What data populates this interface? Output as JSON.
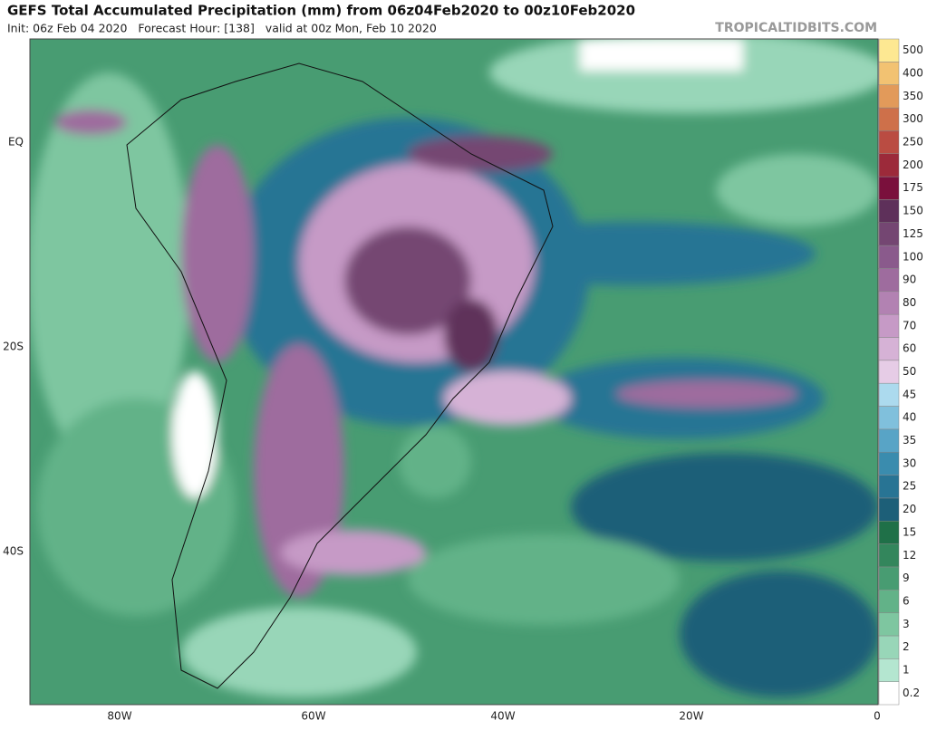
{
  "header": {
    "title": "GEFS Total Accumulated Precipitation (mm) from 06z04Feb2020 to 00z10Feb2020",
    "subtitle": "Init: 06z Feb 04 2020   Forecast Hour: [138]   valid at 00z Mon, Feb 10 2020",
    "brand": "TROPICALTIDBITS.COM"
  },
  "map": {
    "lon_labels": [
      "80W",
      "60W",
      "40W",
      "20W",
      "0"
    ],
    "lat_labels": [
      "EQ",
      "20S",
      "40S"
    ]
  },
  "colorbar": {
    "levels": [
      {
        "label": "0.2",
        "color": "#ffffff"
      },
      {
        "label": "1",
        "color": "#b4e6d0"
      },
      {
        "label": "2",
        "color": "#98d6b8"
      },
      {
        "label": "3",
        "color": "#7ec6a0"
      },
      {
        "label": "6",
        "color": "#62b288"
      },
      {
        "label": "9",
        "color": "#489c72"
      },
      {
        "label": "12",
        "color": "#33865c"
      },
      {
        "label": "15",
        "color": "#1f7048"
      },
      {
        "label": "20",
        "color": "#1d5f78"
      },
      {
        "label": "25",
        "color": "#287494"
      },
      {
        "label": "30",
        "color": "#3a8cae"
      },
      {
        "label": "35",
        "color": "#58a4c6"
      },
      {
        "label": "40",
        "color": "#80c0dc"
      },
      {
        "label": "45",
        "color": "#acdaee"
      },
      {
        "label": "50",
        "color": "#e6cce6"
      },
      {
        "label": "60",
        "color": "#d6b2d6"
      },
      {
        "label": "70",
        "color": "#c69ac6"
      },
      {
        "label": "80",
        "color": "#b282b2"
      },
      {
        "label": "90",
        "color": "#9e6c9e"
      },
      {
        "label": "100",
        "color": "#8a5a8c"
      },
      {
        "label": "125",
        "color": "#744672"
      },
      {
        "label": "150",
        "color": "#5e305a"
      },
      {
        "label": "175",
        "color": "#7a103c"
      },
      {
        "label": "200",
        "color": "#9c2a3a"
      },
      {
        "label": "250",
        "color": "#ba4c42"
      },
      {
        "label": "300",
        "color": "#ce704a"
      },
      {
        "label": "350",
        "color": "#e29a5a"
      },
      {
        "label": "400",
        "color": "#f2c272"
      },
      {
        "label": "500",
        "color": "#fde892"
      }
    ]
  }
}
